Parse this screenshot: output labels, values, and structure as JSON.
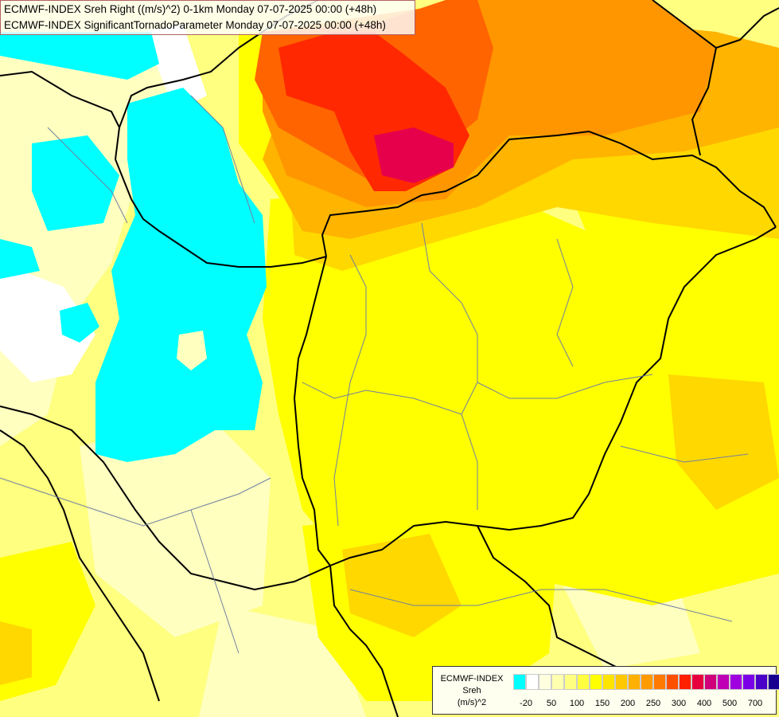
{
  "header": {
    "line1": "ECMWF-INDEX Sreh Right ((m/s)^2) 0-1km Monday 07-07-2025 00:00 (+48h)",
    "line2": "ECMWF-INDEX SignificantTornadoParameter Monday 07-07-2025 00:00 (+48h)"
  },
  "legend": {
    "line1": "ECMWF-INDEX",
    "line2": "Sreh",
    "line3": "(m/s)^2",
    "colors": [
      "#00ffff",
      "#ffffff",
      "#ffffe0",
      "#ffffb0",
      "#ffff80",
      "#ffff40",
      "#ffff00",
      "#ffe400",
      "#ffc800",
      "#ffb000",
      "#ff9a00",
      "#ff7a00",
      "#ff5000",
      "#ff2000",
      "#e6003c",
      "#d0007a",
      "#c000b4",
      "#a000e0",
      "#7a00e6",
      "#4a00c8",
      "#1a0090"
    ],
    "ticks": [
      "-20",
      "50",
      "100",
      "150",
      "200",
      "250",
      "300",
      "400",
      "500",
      "700"
    ]
  },
  "map": {
    "colors": {
      "cyan": "#00ffff",
      "pale": "#ffffc0",
      "light_yellow": "#ffff80",
      "yellow": "#ffff00",
      "gold": "#ffd800",
      "orange_light": "#ffb400",
      "orange": "#ff9600",
      "dark_orange": "#ff6400",
      "red": "#ff2800",
      "crimson": "#e6004c"
    }
  }
}
